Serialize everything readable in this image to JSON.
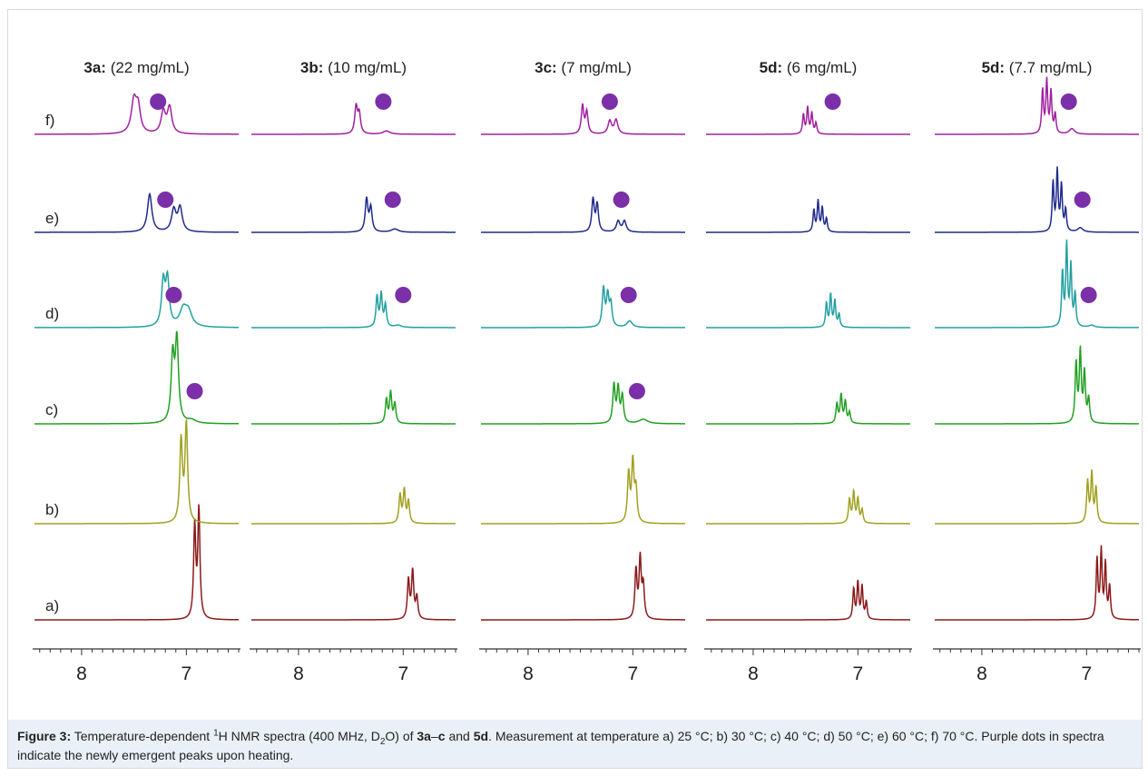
{
  "chart_data": {
    "type": "line",
    "description_kind": "stacked NMR spectra panels",
    "x_tick_labels": [
      "8",
      "7"
    ],
    "x_ticks": [
      8,
      7
    ],
    "x_range": [
      8.45,
      6.5
    ],
    "row_labels": [
      "a)",
      "b)",
      "c)",
      "d)",
      "e)",
      "f)"
    ],
    "row_colors": [
      "#8b1a1a",
      "#a0a020",
      "#22a022",
      "#22a0a0",
      "#1f2a8c",
      "#a020a0"
    ],
    "dot_color": "#7b2fa8",
    "panels": [
      {
        "title_bold": "3a:",
        "title_rest": " (22 mg/mL)",
        "rows": [
          {
            "peaks": [
              [
                6.92,
                0.85,
                0.012
              ],
              [
                6.88,
                1.0,
                0.012
              ]
            ],
            "dot": null
          },
          {
            "peaks": [
              [
                7.05,
                0.75,
                0.015
              ],
              [
                7.0,
                0.9,
                0.015
              ]
            ],
            "dot": null
          },
          {
            "peaks": [
              [
                7.13,
                0.6,
                0.018
              ],
              [
                7.09,
                0.75,
                0.018
              ],
              [
                6.95,
                0.03,
                0.05
              ]
            ],
            "dot": 6.92
          },
          {
            "peaks": [
              [
                7.22,
                0.4,
                0.02
              ],
              [
                7.18,
                0.42,
                0.02
              ],
              [
                7.03,
                0.15,
                0.04
              ],
              [
                6.98,
                0.13,
                0.04
              ]
            ],
            "dot": 7.12
          },
          {
            "peaks": [
              [
                7.35,
                0.35,
                0.025
              ],
              [
                7.12,
                0.2,
                0.025
              ],
              [
                7.06,
                0.22,
                0.025
              ]
            ],
            "dot": 7.2
          },
          {
            "peaks": [
              [
                7.5,
                0.3,
                0.03
              ],
              [
                7.46,
                0.22,
                0.025
              ],
              [
                7.22,
                0.2,
                0.025
              ],
              [
                7.16,
                0.24,
                0.025
              ]
            ],
            "dot": 7.27
          }
        ]
      },
      {
        "title_bold": "3b:",
        "title_rest": " (10 mg/mL)",
        "rows": [
          {
            "peaks": [
              [
                6.95,
                0.36,
                0.012
              ],
              [
                6.91,
                0.44,
                0.012
              ],
              [
                6.87,
                0.2,
                0.012
              ]
            ],
            "dot": null
          },
          {
            "peaks": [
              [
                7.03,
                0.26,
                0.012
              ],
              [
                6.99,
                0.3,
                0.012
              ],
              [
                6.95,
                0.2,
                0.012
              ]
            ],
            "dot": null
          },
          {
            "peaks": [
              [
                7.16,
                0.22,
                0.012
              ],
              [
                7.12,
                0.28,
                0.012
              ],
              [
                7.08,
                0.18,
                0.012
              ]
            ],
            "dot": null
          },
          {
            "peaks": [
              [
                7.25,
                0.28,
                0.012
              ],
              [
                7.21,
                0.3,
                0.012
              ],
              [
                7.17,
                0.2,
                0.012
              ],
              [
                7.05,
                0.02,
                0.04
              ]
            ],
            "dot": 7.0
          },
          {
            "peaks": [
              [
                7.35,
                0.3,
                0.015
              ],
              [
                7.31,
                0.22,
                0.015
              ],
              [
                7.08,
                0.03,
                0.04
              ]
            ],
            "dot": 7.1
          },
          {
            "peaks": [
              [
                7.45,
                0.25,
                0.015
              ],
              [
                7.42,
                0.18,
                0.015
              ],
              [
                7.16,
                0.03,
                0.04
              ]
            ],
            "dot": 7.19
          }
        ]
      },
      {
        "title_bold": "3c:",
        "title_rest": " (7 mg/mL)",
        "rows": [
          {
            "peaks": [
              [
                6.97,
                0.45,
                0.012
              ],
              [
                6.93,
                0.55,
                0.012
              ],
              [
                6.9,
                0.3,
                0.012
              ]
            ],
            "dot": null
          },
          {
            "peaks": [
              [
                7.04,
                0.45,
                0.013
              ],
              [
                7.0,
                0.55,
                0.013
              ],
              [
                6.97,
                0.3,
                0.013
              ]
            ],
            "dot": null
          },
          {
            "peaks": [
              [
                7.18,
                0.35,
                0.013
              ],
              [
                7.14,
                0.32,
                0.013
              ],
              [
                7.1,
                0.25,
                0.013
              ],
              [
                6.9,
                0.04,
                0.05
              ]
            ],
            "dot": 6.96
          },
          {
            "peaks": [
              [
                7.28,
                0.35,
                0.014
              ],
              [
                7.24,
                0.28,
                0.014
              ],
              [
                7.21,
                0.2,
                0.014
              ],
              [
                7.03,
                0.06,
                0.03
              ]
            ],
            "dot": 7.04
          },
          {
            "peaks": [
              [
                7.38,
                0.3,
                0.014
              ],
              [
                7.34,
                0.25,
                0.014
              ],
              [
                7.14,
                0.1,
                0.02
              ],
              [
                7.08,
                0.1,
                0.02
              ]
            ],
            "dot": 7.11
          },
          {
            "peaks": [
              [
                7.48,
                0.26,
                0.014
              ],
              [
                7.44,
                0.2,
                0.014
              ],
              [
                7.22,
                0.12,
                0.02
              ],
              [
                7.16,
                0.13,
                0.02
              ]
            ],
            "dot": 7.22
          }
        ]
      },
      {
        "title_bold": "5d:",
        "title_rest": " (6 mg/mL)",
        "rows": [
          {
            "peaks": [
              [
                7.04,
                0.28,
                0.01
              ],
              [
                7.0,
                0.34,
                0.01
              ],
              [
                6.96,
                0.3,
                0.01
              ],
              [
                6.92,
                0.16,
                0.01
              ]
            ],
            "dot": null
          },
          {
            "peaks": [
              [
                7.08,
                0.22,
                0.011
              ],
              [
                7.04,
                0.28,
                0.011
              ],
              [
                7.0,
                0.22,
                0.011
              ],
              [
                6.96,
                0.12,
                0.011
              ]
            ],
            "dot": null
          },
          {
            "peaks": [
              [
                7.2,
                0.18,
                0.011
              ],
              [
                7.16,
                0.26,
                0.011
              ],
              [
                7.12,
                0.2,
                0.011
              ],
              [
                7.08,
                0.1,
                0.011
              ]
            ],
            "dot": null
          },
          {
            "peaks": [
              [
                7.3,
                0.22,
                0.01
              ],
              [
                7.26,
                0.3,
                0.01
              ],
              [
                7.22,
                0.24,
                0.01
              ],
              [
                7.18,
                0.12,
                0.01
              ]
            ],
            "dot": null
          },
          {
            "peaks": [
              [
                7.42,
                0.2,
                0.01
              ],
              [
                7.38,
                0.28,
                0.01
              ],
              [
                7.34,
                0.22,
                0.01
              ],
              [
                7.3,
                0.12,
                0.01
              ]
            ],
            "dot": null
          },
          {
            "peaks": [
              [
                7.52,
                0.18,
                0.01
              ],
              [
                7.48,
                0.24,
                0.01
              ],
              [
                7.44,
                0.19,
                0.01
              ],
              [
                7.4,
                0.1,
                0.01
              ]
            ],
            "dot": 7.24
          }
        ]
      },
      {
        "title_bold": "5d:",
        "title_rest": " (7.7 mg/mL)",
        "rows": [
          {
            "peaks": [
              [
                6.9,
                0.55,
                0.01
              ],
              [
                6.86,
                0.62,
                0.01
              ],
              [
                6.82,
                0.5,
                0.01
              ],
              [
                6.78,
                0.3,
                0.01
              ]
            ],
            "dot": null
          },
          {
            "peaks": [
              [
                6.99,
                0.38,
                0.011
              ],
              [
                6.95,
                0.45,
                0.011
              ],
              [
                6.91,
                0.32,
                0.011
              ]
            ],
            "dot": null
          },
          {
            "peaks": [
              [
                7.1,
                0.55,
                0.011
              ],
              [
                7.06,
                0.65,
                0.011
              ],
              [
                7.02,
                0.45,
                0.011
              ],
              [
                6.98,
                0.22,
                0.011
              ]
            ],
            "dot": null
          },
          {
            "peaks": [
              [
                7.23,
                0.5,
                0.01
              ],
              [
                7.19,
                0.75,
                0.01
              ],
              [
                7.15,
                0.55,
                0.01
              ],
              [
                7.11,
                0.3,
                0.01
              ],
              [
                6.95,
                0.02,
                0.03
              ]
            ],
            "dot": 6.98
          },
          {
            "peaks": [
              [
                7.32,
                0.45,
                0.01
              ],
              [
                7.28,
                0.55,
                0.01
              ],
              [
                7.24,
                0.42,
                0.01
              ],
              [
                7.2,
                0.2,
                0.01
              ],
              [
                7.06,
                0.04,
                0.03
              ]
            ],
            "dot": 7.04
          },
          {
            "peaks": [
              [
                7.42,
                0.4,
                0.01
              ],
              [
                7.38,
                0.48,
                0.01
              ],
              [
                7.34,
                0.38,
                0.01
              ],
              [
                7.3,
                0.18,
                0.01
              ],
              [
                7.14,
                0.05,
                0.03
              ]
            ],
            "dot": 7.17
          }
        ]
      }
    ]
  },
  "caption": {
    "label": "Figure 3:",
    "t1": " Temperature-dependent ",
    "sup1": "1",
    "t2": "H NMR spectra (400 MHz, D",
    "sub1": "2",
    "t3": "O) of ",
    "b1": "3a",
    "t4": "–",
    "b2": "c",
    "t5": " and ",
    "b3": "5d",
    "t6": ". Measurement at temperature a) 25 °C; b) 30 °C; c) 40 °C; d) 50 °C; e) 60 °C; f) 70 °C. Purple dots in spectra indicate the newly emergent peaks upon heating."
  }
}
